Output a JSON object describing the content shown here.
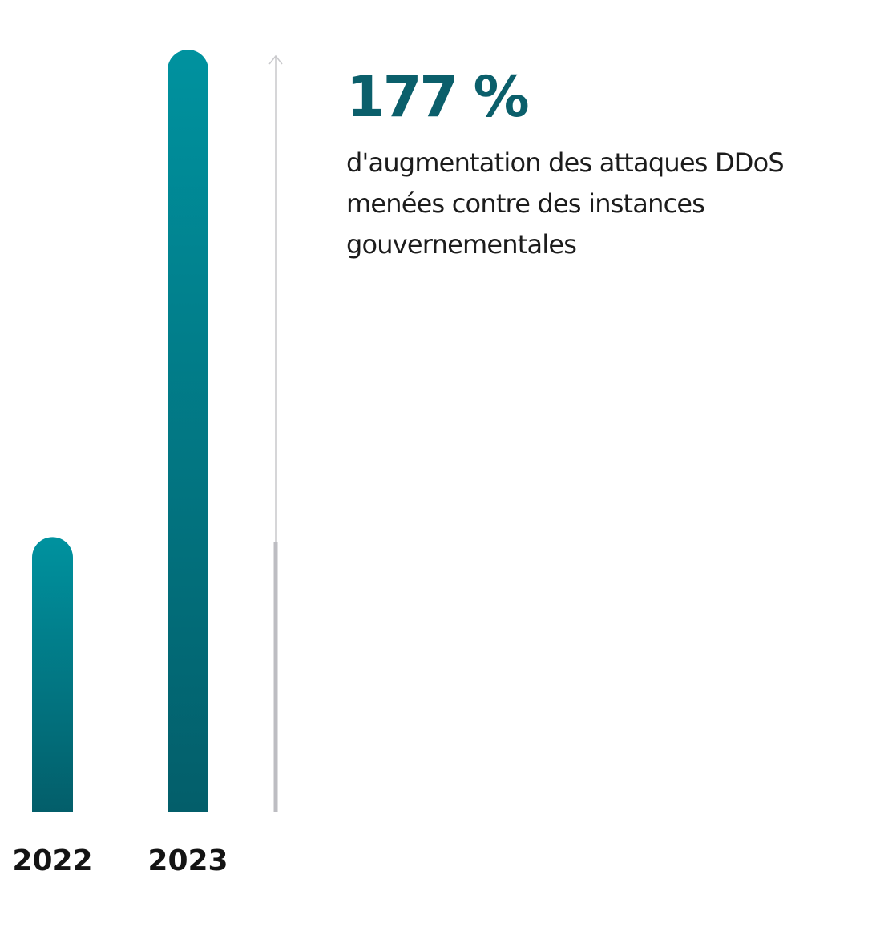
{
  "chart_data": {
    "type": "bar",
    "categories": [
      "2022",
      "2023"
    ],
    "values": [
      36.1,
      100
    ],
    "ylim": [
      0,
      100
    ],
    "colors": {
      "bar_top": "#00929f",
      "bar_bottom": "#035e6a",
      "axis": "#c9c9cc",
      "axis_fill": "#bdbdc2"
    }
  },
  "stat": {
    "value": "177 %",
    "description_lines": [
      "d'augmentation des attaques DDoS",
      "menées contre des instances",
      "gouvernementales"
    ],
    "color": "#0b5f6b"
  }
}
